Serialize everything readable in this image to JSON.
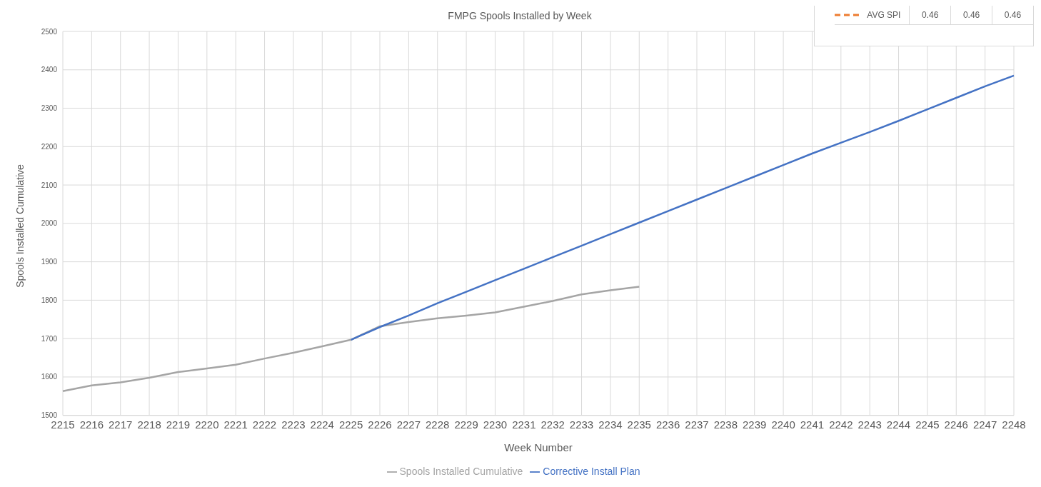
{
  "chart_data": {
    "type": "line",
    "title": "FMPG Spools Installed by Week",
    "xlabel": "Week Number",
    "ylabel": "Spools Installed Cumulative",
    "categories": [
      "2215",
      "2216",
      "2217",
      "2218",
      "2219",
      "2220",
      "2221",
      "2222",
      "2223",
      "2224",
      "2225",
      "2226",
      "2227",
      "2228",
      "2229",
      "2230",
      "2231",
      "2232",
      "2233",
      "2234",
      "2235",
      "2236",
      "2237",
      "2238",
      "2239",
      "2240",
      "2241",
      "2242",
      "2243",
      "2244",
      "2245",
      "2246",
      "2247",
      "2248"
    ],
    "series": [
      {
        "name": "Spools Installed Cumulative",
        "color": "#a5a5a5",
        "values": [
          1563,
          1578,
          1586,
          1598,
          1613,
          1622,
          1632,
          1648,
          1663,
          1680,
          1697,
          1732,
          1743,
          1753,
          1760,
          1768,
          1783,
          1798,
          1815,
          1826,
          1835,
          null,
          null,
          null,
          null,
          null,
          null,
          null,
          null,
          null,
          null,
          null,
          null,
          null
        ]
      },
      {
        "name": "Corrective Install Plan",
        "color": "#4472c4",
        "values": [
          null,
          null,
          null,
          null,
          null,
          null,
          null,
          null,
          null,
          null,
          1697,
          1730,
          1760,
          1792,
          1822,
          1852,
          1882,
          1912,
          1942,
          1972,
          2002,
          2032,
          2062,
          2092,
          2122,
          2152,
          2182,
          2210,
          2238,
          2267,
          2297,
          2327,
          2357,
          2385
        ]
      }
    ],
    "ylim": [
      1500,
      2500
    ],
    "yticks": [
      1500,
      1600,
      1700,
      1800,
      1900,
      2000,
      2100,
      2200,
      2300,
      2400,
      2500
    ],
    "grid": true,
    "legend": "bottom",
    "marker": "none",
    "line_style": "solid",
    "annotations": [
      "AVG SPI",
      "0.46",
      "0.46",
      "0.46"
    ]
  }
}
